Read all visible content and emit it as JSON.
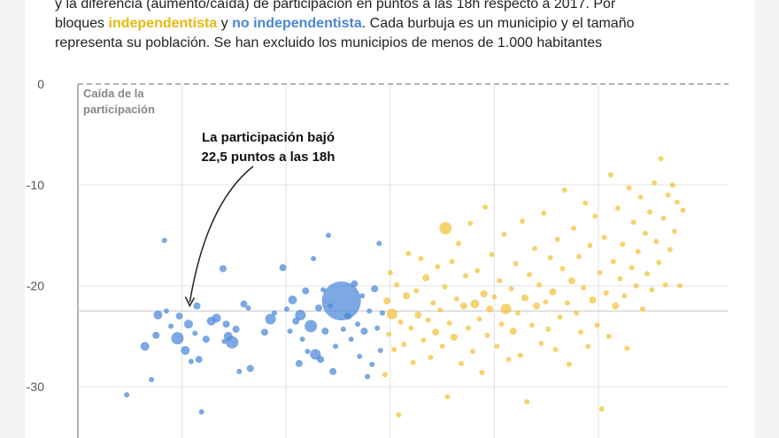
{
  "header": {
    "line1": "y la diferencia (aumento/caída) de participación en puntos a las 18h respecto a 2017. Por",
    "line2_pre": "bloques ",
    "independentista": "independentista",
    "line2_mid": " y ",
    "no_independentista": "no independentista",
    "line2_post": ". Cada burbuja es un municipio y el tamaño",
    "line3": "representa su población. Se han excluido los municipios de menos de 1.000 habitantes"
  },
  "colors": {
    "independentista": "#f2c23a",
    "no_independentista": "#4a86d8",
    "axis_text": "#555555",
    "grid": "#e3e3e3"
  },
  "chart_data": {
    "type": "scatter",
    "y_axis_title": [
      "Caída de la",
      "participación"
    ],
    "y_ticks": [
      0,
      -10,
      -20,
      -30
    ],
    "ylim": [
      -33.5,
      0
    ],
    "xlim": [
      0,
      100
    ],
    "vertical_gridlines_x": [
      16,
      32,
      48,
      64,
      80
    ],
    "reference_y": -22.5,
    "annotation": {
      "lines": [
        "La participación bajó",
        "22,5 puntos a las 18h"
      ],
      "target_x": 17.2,
      "target_y": -22.5
    },
    "series": [
      {
        "name": "no independentista",
        "color": "#4a86d8",
        "points": [
          {
            "x": 7.5,
            "y": -30.8,
            "r": 3
          },
          {
            "x": 10.3,
            "y": -26.0,
            "r": 5
          },
          {
            "x": 11.3,
            "y": -29.3,
            "r": 3
          },
          {
            "x": 12.0,
            "y": -24.9,
            "r": 4
          },
          {
            "x": 12.3,
            "y": -22.9,
            "r": 5
          },
          {
            "x": 13.3,
            "y": -15.5,
            "r": 3
          },
          {
            "x": 13.6,
            "y": -22.5,
            "r": 3
          },
          {
            "x": 14.3,
            "y": -24.0,
            "r": 3
          },
          {
            "x": 15.3,
            "y": -25.2,
            "r": 7
          },
          {
            "x": 15.6,
            "y": -23.0,
            "r": 4
          },
          {
            "x": 16.5,
            "y": -26.4,
            "r": 5
          },
          {
            "x": 17.0,
            "y": -23.8,
            "r": 5
          },
          {
            "x": 17.4,
            "y": -27.5,
            "r": 3
          },
          {
            "x": 18.0,
            "y": -24.7,
            "r": 3
          },
          {
            "x": 18.3,
            "y": -22.0,
            "r": 4
          },
          {
            "x": 18.6,
            "y": -27.3,
            "r": 4
          },
          {
            "x": 19.0,
            "y": -32.5,
            "r": 3
          },
          {
            "x": 19.7,
            "y": -25.3,
            "r": 4
          },
          {
            "x": 20.5,
            "y": -23.5,
            "r": 5
          },
          {
            "x": 21.3,
            "y": -23.2,
            "r": 5
          },
          {
            "x": 22.3,
            "y": -18.3,
            "r": 4
          },
          {
            "x": 22.5,
            "y": -25.5,
            "r": 3
          },
          {
            "x": 22.8,
            "y": -23.8,
            "r": 4
          },
          {
            "x": 23.1,
            "y": -25.0,
            "r": 5
          },
          {
            "x": 23.7,
            "y": -25.6,
            "r": 7
          },
          {
            "x": 24.3,
            "y": -24.3,
            "r": 4
          },
          {
            "x": 24.8,
            "y": -28.5,
            "r": 3
          },
          {
            "x": 25.5,
            "y": -21.8,
            "r": 4
          },
          {
            "x": 26.2,
            "y": -22.2,
            "r": 3
          },
          {
            "x": 26.5,
            "y": -28.2,
            "r": 4
          },
          {
            "x": 28.7,
            "y": -24.6,
            "r": 4
          },
          {
            "x": 29.6,
            "y": -23.3,
            "r": 6
          },
          {
            "x": 30.2,
            "y": -22.7,
            "r": 3
          },
          {
            "x": 31.5,
            "y": -18.2,
            "r": 4
          },
          {
            "x": 32.1,
            "y": -22.3,
            "r": 3
          },
          {
            "x": 32.6,
            "y": -24.5,
            "r": 3
          },
          {
            "x": 33.0,
            "y": -21.4,
            "r": 5
          },
          {
            "x": 33.5,
            "y": -23.5,
            "r": 4
          },
          {
            "x": 34.0,
            "y": -27.7,
            "r": 4
          },
          {
            "x": 34.2,
            "y": -22.9,
            "r": 6
          },
          {
            "x": 34.5,
            "y": -25.3,
            "r": 3
          },
          {
            "x": 35.0,
            "y": -20.5,
            "r": 4
          },
          {
            "x": 35.3,
            "y": -26.5,
            "r": 3
          },
          {
            "x": 35.8,
            "y": -24.0,
            "r": 7
          },
          {
            "x": 36.2,
            "y": -17.3,
            "r": 3
          },
          {
            "x": 36.5,
            "y": -26.8,
            "r": 6
          },
          {
            "x": 37.0,
            "y": -22.2,
            "r": 4
          },
          {
            "x": 37.3,
            "y": -27.3,
            "r": 4
          },
          {
            "x": 37.7,
            "y": -20.4,
            "r": 3
          },
          {
            "x": 38.0,
            "y": -24.5,
            "r": 4
          },
          {
            "x": 38.5,
            "y": -15.0,
            "r": 3
          },
          {
            "x": 38.8,
            "y": -22.0,
            "r": 3
          },
          {
            "x": 39.2,
            "y": -28.5,
            "r": 4
          },
          {
            "x": 39.6,
            "y": -26.0,
            "r": 3
          },
          {
            "x": 40.5,
            "y": -21.5,
            "r": 22
          },
          {
            "x": 40.8,
            "y": -24.3,
            "r": 3
          },
          {
            "x": 41.5,
            "y": -23.0,
            "r": 4
          },
          {
            "x": 42.0,
            "y": -25.3,
            "r": 3
          },
          {
            "x": 42.5,
            "y": -19.8,
            "r": 4
          },
          {
            "x": 43.0,
            "y": -23.8,
            "r": 3
          },
          {
            "x": 43.3,
            "y": -27.0,
            "r": 3
          },
          {
            "x": 43.7,
            "y": -21.0,
            "r": 3
          },
          {
            "x": 44.0,
            "y": -24.5,
            "r": 4
          },
          {
            "x": 44.5,
            "y": -29.0,
            "r": 3
          },
          {
            "x": 44.8,
            "y": -22.5,
            "r": 3
          },
          {
            "x": 45.2,
            "y": -27.8,
            "r": 3
          },
          {
            "x": 45.6,
            "y": -20.3,
            "r": 4
          },
          {
            "x": 46.0,
            "y": -24.2,
            "r": 3
          },
          {
            "x": 46.3,
            "y": -15.8,
            "r": 3
          },
          {
            "x": 46.5,
            "y": -26.4,
            "r": 3
          },
          {
            "x": 46.8,
            "y": -22.7,
            "r": 3
          }
        ]
      },
      {
        "name": "independentista",
        "color": "#f2c23a",
        "points": [
          {
            "x": 47.2,
            "y": -28.8,
            "r": 3
          },
          {
            "x": 47.5,
            "y": -21.5,
            "r": 4
          },
          {
            "x": 47.8,
            "y": -24.8,
            "r": 3
          },
          {
            "x": 48.0,
            "y": -18.7,
            "r": 3
          },
          {
            "x": 48.3,
            "y": -22.8,
            "r": 6
          },
          {
            "x": 48.6,
            "y": -26.3,
            "r": 3
          },
          {
            "x": 49.0,
            "y": -19.9,
            "r": 3
          },
          {
            "x": 49.3,
            "y": -32.8,
            "r": 3
          },
          {
            "x": 49.6,
            "y": -23.6,
            "r": 3
          },
          {
            "x": 50.1,
            "y": -25.8,
            "r": 3
          },
          {
            "x": 50.5,
            "y": -21.0,
            "r": 4
          },
          {
            "x": 50.8,
            "y": -16.8,
            "r": 3
          },
          {
            "x": 51.2,
            "y": -24.2,
            "r": 3
          },
          {
            "x": 51.5,
            "y": -27.6,
            "r": 3
          },
          {
            "x": 52.0,
            "y": -20.5,
            "r": 3
          },
          {
            "x": 52.3,
            "y": -22.9,
            "r": 4
          },
          {
            "x": 52.7,
            "y": -17.3,
            "r": 3
          },
          {
            "x": 53.1,
            "y": -25.4,
            "r": 3
          },
          {
            "x": 53.5,
            "y": -19.2,
            "r": 4
          },
          {
            "x": 53.8,
            "y": -23.4,
            "r": 3
          },
          {
            "x": 54.2,
            "y": -27.1,
            "r": 3
          },
          {
            "x": 54.6,
            "y": -21.7,
            "r": 3
          },
          {
            "x": 55.0,
            "y": -24.6,
            "r": 4
          },
          {
            "x": 55.3,
            "y": -18.1,
            "r": 3
          },
          {
            "x": 55.7,
            "y": -22.4,
            "r": 3
          },
          {
            "x": 56.0,
            "y": -26.0,
            "r": 3
          },
          {
            "x": 56.4,
            "y": -20.1,
            "r": 3
          },
          {
            "x": 56.5,
            "y": -14.3,
            "r": 7
          },
          {
            "x": 56.8,
            "y": -31.0,
            "r": 3
          },
          {
            "x": 57.1,
            "y": -23.7,
            "r": 3
          },
          {
            "x": 57.5,
            "y": -17.6,
            "r": 3
          },
          {
            "x": 57.8,
            "y": -25.1,
            "r": 4
          },
          {
            "x": 58.2,
            "y": -21.3,
            "r": 3
          },
          {
            "x": 58.5,
            "y": -15.8,
            "r": 3
          },
          {
            "x": 58.9,
            "y": -27.7,
            "r": 3
          },
          {
            "x": 59.3,
            "y": -22.0,
            "r": 4
          },
          {
            "x": 59.6,
            "y": -19.0,
            "r": 3
          },
          {
            "x": 60.0,
            "y": -24.2,
            "r": 3
          },
          {
            "x": 60.3,
            "y": -13.8,
            "r": 3
          },
          {
            "x": 60.7,
            "y": -26.5,
            "r": 3
          },
          {
            "x": 61.0,
            "y": -21.8,
            "r": 5
          },
          {
            "x": 61.4,
            "y": -18.5,
            "r": 3
          },
          {
            "x": 61.7,
            "y": -23.3,
            "r": 3
          },
          {
            "x": 62.1,
            "y": -28.6,
            "r": 3
          },
          {
            "x": 62.4,
            "y": -20.8,
            "r": 4
          },
          {
            "x": 62.6,
            "y": -12.2,
            "r": 3
          },
          {
            "x": 62.9,
            "y": -24.9,
            "r": 3
          },
          {
            "x": 63.3,
            "y": -22.3,
            "r": 4
          },
          {
            "x": 63.6,
            "y": -16.9,
            "r": 3
          },
          {
            "x": 64.0,
            "y": -21.1,
            "r": 3
          },
          {
            "x": 64.4,
            "y": -26.0,
            "r": 3
          },
          {
            "x": 64.8,
            "y": -19.5,
            "r": 3
          },
          {
            "x": 65.1,
            "y": -23.8,
            "r": 3
          },
          {
            "x": 65.5,
            "y": -14.9,
            "r": 3
          },
          {
            "x": 65.8,
            "y": -22.3,
            "r": 6
          },
          {
            "x": 66.2,
            "y": -27.3,
            "r": 3
          },
          {
            "x": 66.6,
            "y": -20.3,
            "r": 3
          },
          {
            "x": 66.9,
            "y": -24.5,
            "r": 4
          },
          {
            "x": 67.3,
            "y": -17.8,
            "r": 3
          },
          {
            "x": 67.6,
            "y": -22.7,
            "r": 3
          },
          {
            "x": 68.0,
            "y": -26.9,
            "r": 3
          },
          {
            "x": 68.3,
            "y": -13.6,
            "r": 3
          },
          {
            "x": 68.7,
            "y": -21.2,
            "r": 4
          },
          {
            "x": 69.0,
            "y": -31.5,
            "r": 3
          },
          {
            "x": 69.4,
            "y": -18.9,
            "r": 3
          },
          {
            "x": 69.8,
            "y": -23.9,
            "r": 3
          },
          {
            "x": 70.2,
            "y": -16.3,
            "r": 3
          },
          {
            "x": 70.5,
            "y": -22.0,
            "r": 4
          },
          {
            "x": 70.9,
            "y": -19.9,
            "r": 3
          },
          {
            "x": 71.2,
            "y": -25.7,
            "r": 3
          },
          {
            "x": 71.6,
            "y": -12.8,
            "r": 3
          },
          {
            "x": 71.9,
            "y": -21.6,
            "r": 3
          },
          {
            "x": 72.3,
            "y": -24.3,
            "r": 3
          },
          {
            "x": 72.6,
            "y": -17.2,
            "r": 3
          },
          {
            "x": 73.0,
            "y": -20.6,
            "r": 4
          },
          {
            "x": 73.4,
            "y": -26.3,
            "r": 3
          },
          {
            "x": 73.7,
            "y": -15.4,
            "r": 3
          },
          {
            "x": 74.1,
            "y": -23.1,
            "r": 3
          },
          {
            "x": 74.5,
            "y": -18.3,
            "r": 3
          },
          {
            "x": 74.8,
            "y": -10.5,
            "r": 3
          },
          {
            "x": 75.2,
            "y": -21.7,
            "r": 3
          },
          {
            "x": 75.5,
            "y": -27.8,
            "r": 3
          },
          {
            "x": 75.9,
            "y": -19.5,
            "r": 4
          },
          {
            "x": 76.2,
            "y": -14.3,
            "r": 3
          },
          {
            "x": 76.6,
            "y": -22.7,
            "r": 3
          },
          {
            "x": 77.0,
            "y": -17.1,
            "r": 3
          },
          {
            "x": 77.3,
            "y": -24.6,
            "r": 3
          },
          {
            "x": 77.7,
            "y": -20.2,
            "r": 3
          },
          {
            "x": 78.0,
            "y": -11.8,
            "r": 3
          },
          {
            "x": 78.4,
            "y": -26.0,
            "r": 3
          },
          {
            "x": 78.7,
            "y": -16.0,
            "r": 3
          },
          {
            "x": 79.1,
            "y": -21.4,
            "r": 4
          },
          {
            "x": 79.5,
            "y": -13.1,
            "r": 3
          },
          {
            "x": 79.8,
            "y": -23.9,
            "r": 3
          },
          {
            "x": 80.2,
            "y": -18.7,
            "r": 3
          },
          {
            "x": 80.5,
            "y": -32.2,
            "r": 3
          },
          {
            "x": 80.9,
            "y": -15.2,
            "r": 3
          },
          {
            "x": 81.2,
            "y": -20.7,
            "r": 3
          },
          {
            "x": 81.6,
            "y": -25.0,
            "r": 3
          },
          {
            "x": 81.9,
            "y": -9.0,
            "r": 3
          },
          {
            "x": 82.3,
            "y": -17.6,
            "r": 3
          },
          {
            "x": 82.6,
            "y": -22.0,
            "r": 4
          },
          {
            "x": 83.0,
            "y": -12.3,
            "r": 3
          },
          {
            "x": 83.3,
            "y": -19.3,
            "r": 3
          },
          {
            "x": 83.7,
            "y": -15.9,
            "r": 3
          },
          {
            "x": 84.0,
            "y": -21.0,
            "r": 3
          },
          {
            "x": 84.4,
            "y": -26.2,
            "r": 3
          },
          {
            "x": 84.7,
            "y": -10.3,
            "r": 3
          },
          {
            "x": 85.1,
            "y": -18.2,
            "r": 3
          },
          {
            "x": 85.4,
            "y": -13.7,
            "r": 3
          },
          {
            "x": 85.8,
            "y": -20.0,
            "r": 3
          },
          {
            "x": 86.1,
            "y": -16.6,
            "r": 3
          },
          {
            "x": 86.5,
            "y": -11.2,
            "r": 3
          },
          {
            "x": 86.8,
            "y": -22.3,
            "r": 3
          },
          {
            "x": 87.2,
            "y": -14.8,
            "r": 3
          },
          {
            "x": 87.5,
            "y": -18.8,
            "r": 3
          },
          {
            "x": 87.9,
            "y": -12.7,
            "r": 3
          },
          {
            "x": 88.2,
            "y": -20.4,
            "r": 3
          },
          {
            "x": 88.6,
            "y": -9.8,
            "r": 3
          },
          {
            "x": 88.9,
            "y": -15.6,
            "r": 3
          },
          {
            "x": 89.3,
            "y": -17.7,
            "r": 3
          },
          {
            "x": 89.6,
            "y": -7.4,
            "r": 3
          },
          {
            "x": 90.0,
            "y": -13.3,
            "r": 3
          },
          {
            "x": 90.3,
            "y": -19.9,
            "r": 3
          },
          {
            "x": 90.7,
            "y": -11.0,
            "r": 3
          },
          {
            "x": 91.0,
            "y": -16.4,
            "r": 3
          },
          {
            "x": 91.4,
            "y": -10.0,
            "r": 3
          },
          {
            "x": 91.7,
            "y": -14.6,
            "r": 3
          },
          {
            "x": 92.1,
            "y": -11.7,
            "r": 3
          },
          {
            "x": 92.5,
            "y": -20.0,
            "r": 3
          },
          {
            "x": 93.0,
            "y": -12.5,
            "r": 3
          }
        ]
      }
    ]
  }
}
